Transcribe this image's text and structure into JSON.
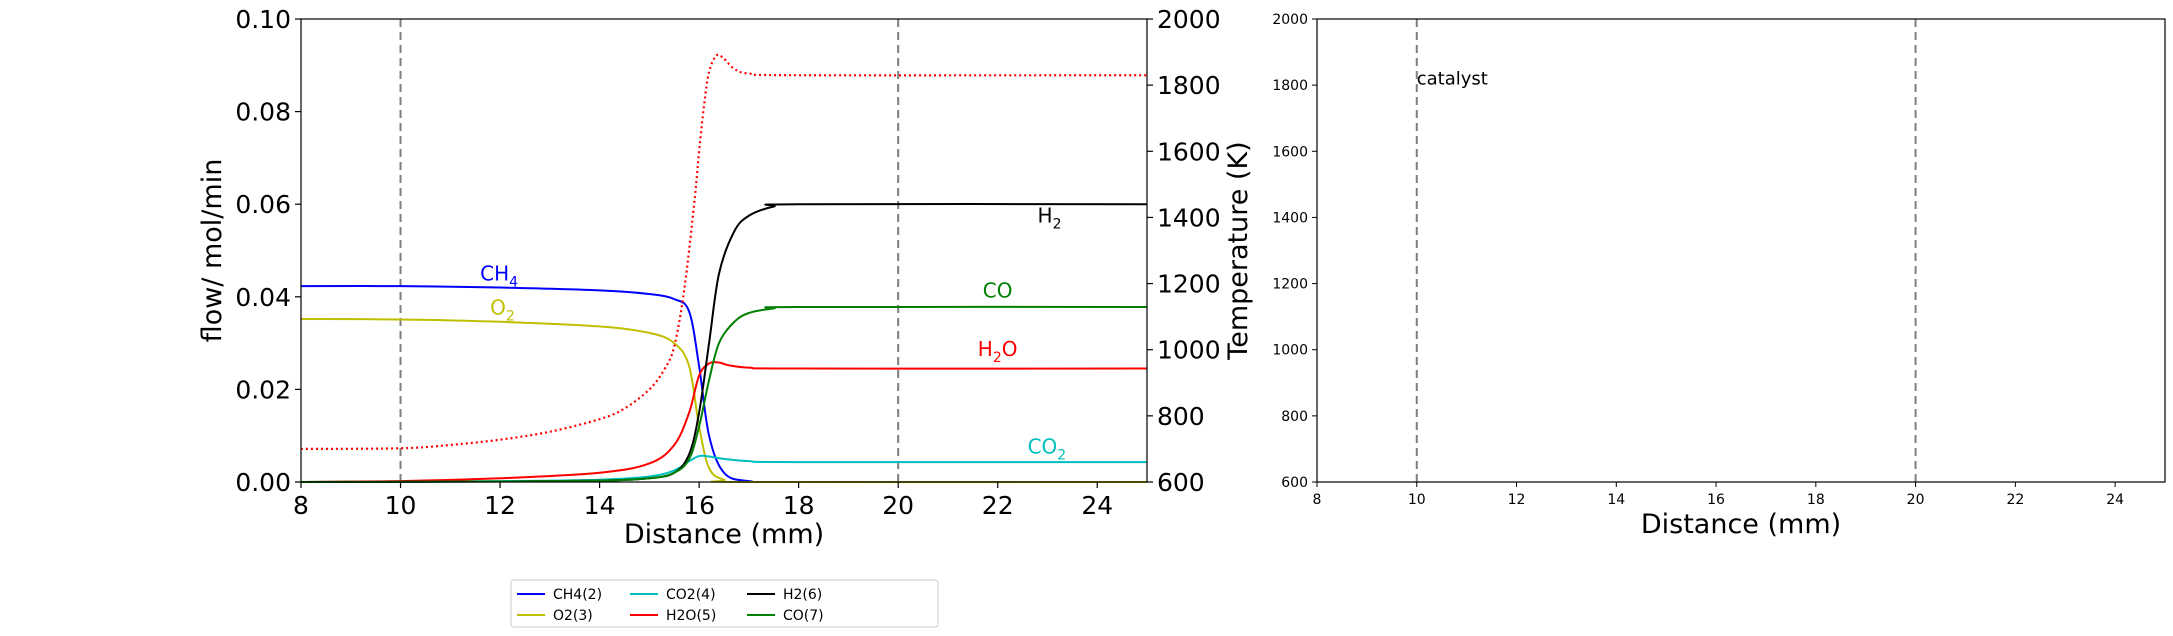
{
  "chart_data": [
    {
      "type": "line",
      "xlabel": "Distance (mm)",
      "ylabel": "flow/ mol/min",
      "y2label": "Temperature (K)",
      "xlim": [
        8,
        25
      ],
      "ylim": [
        0,
        0.1
      ],
      "y2lim": [
        600,
        2000
      ],
      "xticks": [
        "8",
        "10",
        "12",
        "14",
        "16",
        "18",
        "20",
        "22",
        "24"
      ],
      "yticks": [
        "0.00",
        "0.02",
        "0.04",
        "0.06",
        "0.08",
        "0.10"
      ],
      "y2ticks": [
        "600",
        "800",
        "1000",
        "1200",
        "1400",
        "1600",
        "1800",
        "2000"
      ],
      "vlines": [
        10,
        20
      ],
      "series": [
        {
          "name": "CH4(2)",
          "color": "#0000ff",
          "x": [
            8,
            10,
            12,
            14,
            15,
            15.5,
            15.8,
            16.0,
            16.2,
            16.5,
            17,
            18,
            25
          ],
          "values": [
            0.0423,
            0.0423,
            0.042,
            0.0414,
            0.0406,
            0.0395,
            0.0368,
            0.025,
            0.01,
            0.002,
            0.0002,
            0,
            0
          ]
        },
        {
          "name": "O2(3)",
          "color": "#bfbf00",
          "x": [
            8,
            10,
            12,
            14,
            15,
            15.5,
            15.8,
            16.0,
            16.2,
            16.5,
            17,
            25
          ],
          "values": [
            0.0352,
            0.0351,
            0.0346,
            0.0336,
            0.0322,
            0.03,
            0.025,
            0.012,
            0.003,
            0.0005,
            0,
            0
          ]
        },
        {
          "name": "CO2(4)",
          "color": "#00bfbf",
          "x": [
            8,
            12,
            14,
            15,
            15.5,
            15.8,
            16.0,
            16.2,
            16.5,
            17,
            18,
            25
          ],
          "values": [
            0,
            0.0002,
            0.0005,
            0.0012,
            0.0025,
            0.0045,
            0.0056,
            0.0055,
            0.005,
            0.0045,
            0.0043,
            0.0043
          ]
        },
        {
          "name": "H2O(5)",
          "color": "#ff0000",
          "x": [
            8,
            10,
            12,
            14,
            15,
            15.5,
            15.8,
            16.0,
            16.2,
            16.4,
            16.6,
            17,
            18,
            25
          ],
          "values": [
            0,
            0.0002,
            0.0008,
            0.002,
            0.004,
            0.008,
            0.015,
            0.023,
            0.0256,
            0.0258,
            0.0252,
            0.0247,
            0.0245,
            0.0245
          ]
        },
        {
          "name": "H2(6)",
          "color": "#000000",
          "x": [
            8,
            12,
            14,
            15,
            15.5,
            15.8,
            16.0,
            16.2,
            16.4,
            16.7,
            17,
            17.5,
            18,
            25
          ],
          "values": [
            0,
            0.0001,
            0.0003,
            0.0008,
            0.002,
            0.006,
            0.015,
            0.03,
            0.045,
            0.054,
            0.0575,
            0.0595,
            0.06,
            0.06
          ]
        },
        {
          "name": "CO(7)",
          "color": "#008000",
          "x": [
            8,
            12,
            14,
            15,
            15.5,
            15.8,
            16.0,
            16.2,
            16.4,
            16.7,
            17,
            17.5,
            18,
            25
          ],
          "values": [
            0,
            0.0001,
            0.0003,
            0.0008,
            0.002,
            0.005,
            0.012,
            0.022,
            0.03,
            0.0345,
            0.0365,
            0.0375,
            0.0378,
            0.0378
          ]
        },
        {
          "name": "",
          "axis": "right",
          "style": "dotted",
          "color": "#ff0000",
          "x": [
            8,
            10,
            11,
            12,
            13,
            14,
            14.5,
            15,
            15.3,
            15.5,
            15.7,
            15.9,
            16.0,
            16.1,
            16.2,
            16.35,
            16.5,
            16.7,
            17,
            18,
            25
          ],
          "values": [
            700,
            702,
            712,
            728,
            752,
            790,
            822,
            880,
            940,
            1010,
            1180,
            1440,
            1600,
            1740,
            1840,
            1890,
            1880,
            1850,
            1835,
            1830,
            1830
          ]
        }
      ],
      "annotations": [
        {
          "text": "CH",
          "sub": "4",
          "x": 11.6,
          "y": 0.0435,
          "color": "#0000ff"
        },
        {
          "text": "O",
          "sub": "2",
          "x": 11.8,
          "y": 0.0362,
          "color": "#bfbf00"
        },
        {
          "text": "H",
          "sub": "2",
          "x": 22.8,
          "y": 0.056,
          "color": "#000000"
        },
        {
          "text": "CO",
          "sub": "",
          "x": 21.7,
          "y": 0.0398,
          "color": "#008000"
        },
        {
          "text": "H",
          "sub": "2",
          "tail": "O",
          "x": 21.6,
          "y": 0.0272,
          "color": "#ff0000"
        },
        {
          "text": "CO",
          "sub": "2",
          "x": 22.6,
          "y": 0.0062,
          "color": "#00bfbf"
        }
      ],
      "legend": {
        "placement": "bottom-center",
        "ncol": 4
      }
    },
    {
      "type": "line",
      "xlabel": "Distance (mm)",
      "ylabel": "",
      "xlim": [
        8,
        25
      ],
      "ylim": [
        600,
        2000
      ],
      "xticks": [
        "8",
        "10",
        "12",
        "14",
        "16",
        "18",
        "20",
        "22",
        "24"
      ],
      "yticks": [
        "600",
        "800",
        "1000",
        "1200",
        "1400",
        "1600",
        "1800",
        "2000"
      ],
      "vlines": [
        10,
        20
      ],
      "annotations": [
        {
          "text": "catalyst",
          "x": 10.0,
          "y": 1820
        }
      ],
      "series": []
    }
  ]
}
